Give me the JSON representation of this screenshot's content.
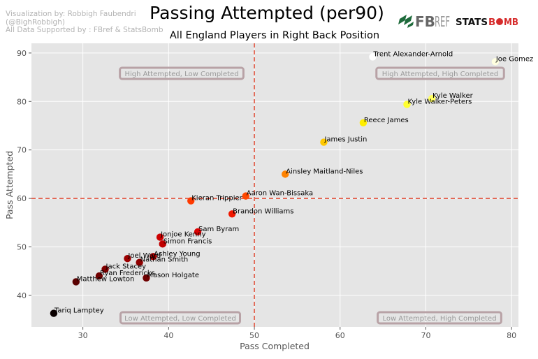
{
  "credit": {
    "line1": "Visualization by: Robbigh Faubendri",
    "line2": "(@BighRobbigh)",
    "line3": "All Data Supported by : FBref & StatsBomb"
  },
  "logos": {
    "fbref_fb": "FB",
    "fbref_ref": "REF",
    "statsbomb_stats": "STATS",
    "statsbomb_b": "B",
    "statsbomb_mb": "MB"
  },
  "chart_data": {
    "type": "scatter",
    "title": "Passing Attempted (per90)",
    "subtitle": "All England Players in Right Back Position",
    "xlabel": "Pass Completed",
    "ylabel": "Pass Attempted",
    "xlim": [
      24.0,
      80.8
    ],
    "ylim": [
      33.5,
      92.0
    ],
    "xticks": [
      30,
      40,
      50,
      60,
      70,
      80
    ],
    "yticks": [
      40,
      50,
      60,
      70,
      80,
      90
    ],
    "grid": true,
    "reference_lines": {
      "x": 50,
      "y": 60,
      "color": "#e24a33"
    },
    "quadrant_labels": [
      {
        "text": "High Attempted, Low Completed",
        "position": "top-left"
      },
      {
        "text": "High Attempted, High Completed",
        "position": "top-right"
      },
      {
        "text": "Low Attempted, Low Completed",
        "position": "bottom-left"
      },
      {
        "text": "Low Attempted, High Completed",
        "position": "bottom-right"
      }
    ],
    "colormap": "hot",
    "points": [
      {
        "name": "Trent Alexander-Arnold",
        "x": 63.8,
        "y": 89.2,
        "color": "#ffffff"
      },
      {
        "name": "Joe Gomez",
        "x": 78.1,
        "y": 88.2,
        "color": "#ffffe0"
      },
      {
        "name": "Kyle Walker",
        "x": 70.7,
        "y": 80.6,
        "color": "#ffff60"
      },
      {
        "name": "Kyle Walker-Peters",
        "x": 67.8,
        "y": 79.4,
        "color": "#ffff30"
      },
      {
        "name": "Reece James",
        "x": 62.7,
        "y": 75.6,
        "color": "#ffee00"
      },
      {
        "name": "James Justin",
        "x": 58.1,
        "y": 71.6,
        "color": "#ffc800"
      },
      {
        "name": "Ainsley Maitland-Niles",
        "x": 53.6,
        "y": 65.0,
        "color": "#ff8200"
      },
      {
        "name": "Aaron Wan-Bissaka",
        "x": 49.0,
        "y": 60.5,
        "color": "#ff4800"
      },
      {
        "name": "Kieran Trippier",
        "x": 42.6,
        "y": 59.5,
        "color": "#ff3a00"
      },
      {
        "name": "Brandon Williams",
        "x": 47.4,
        "y": 56.8,
        "color": "#f01800"
      },
      {
        "name": "Sam Byram",
        "x": 43.4,
        "y": 53.1,
        "color": "#dd0000"
      },
      {
        "name": "Jonjoe Kenny",
        "x": 39.0,
        "y": 52.0,
        "color": "#cc0000"
      },
      {
        "name": "Simon Francis",
        "x": 39.3,
        "y": 50.6,
        "color": "#c00000"
      },
      {
        "name": "Ashley Young",
        "x": 38.2,
        "y": 48.0,
        "color": "#a80000"
      },
      {
        "name": "Joel Ward",
        "x": 35.2,
        "y": 47.6,
        "color": "#9c0000"
      },
      {
        "name": "Nathan Smith",
        "x": 36.6,
        "y": 46.8,
        "color": "#900000"
      },
      {
        "name": "Jack Stacey",
        "x": 32.6,
        "y": 45.4,
        "color": "#800000"
      },
      {
        "name": "Ryan Fredericks",
        "x": 31.9,
        "y": 44.0,
        "color": "#700000"
      },
      {
        "name": "Mason Holgate",
        "x": 37.4,
        "y": 43.6,
        "color": "#6e0000"
      },
      {
        "name": "Matthew Lowton",
        "x": 29.2,
        "y": 42.8,
        "color": "#5a0000"
      },
      {
        "name": "Tariq Lamptey",
        "x": 26.6,
        "y": 36.3,
        "color": "#0a0000"
      }
    ]
  }
}
